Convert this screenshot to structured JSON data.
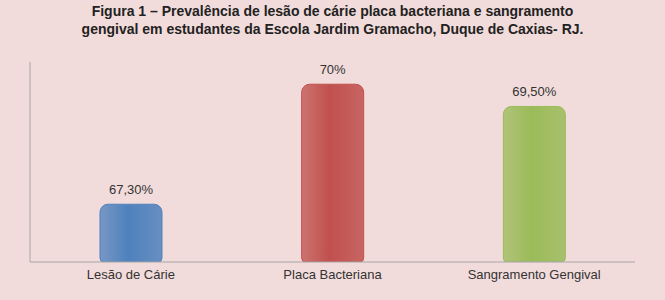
{
  "chart_data": {
    "type": "bar",
    "title": "Figura 1 – Prevalência de lesão de cárie placa bacteriana e sangramento gengival em estudantes da Escola Jardim Gramacho, Duque de Caxias- RJ.",
    "categories": [
      "Lesão de Cárie",
      "Placa Bacteriana",
      "Sangramento Gengival"
    ],
    "values": [
      67.3,
      70,
      69.5
    ],
    "value_labels": [
      "67,30%",
      "70%",
      "69,50%"
    ],
    "colors": [
      "#4f81bd",
      "#c0504d",
      "#9bbb59"
    ],
    "ylim": [
      66,
      70.5
    ],
    "data_labels": true,
    "tick_labels": "x",
    "grid": false
  }
}
